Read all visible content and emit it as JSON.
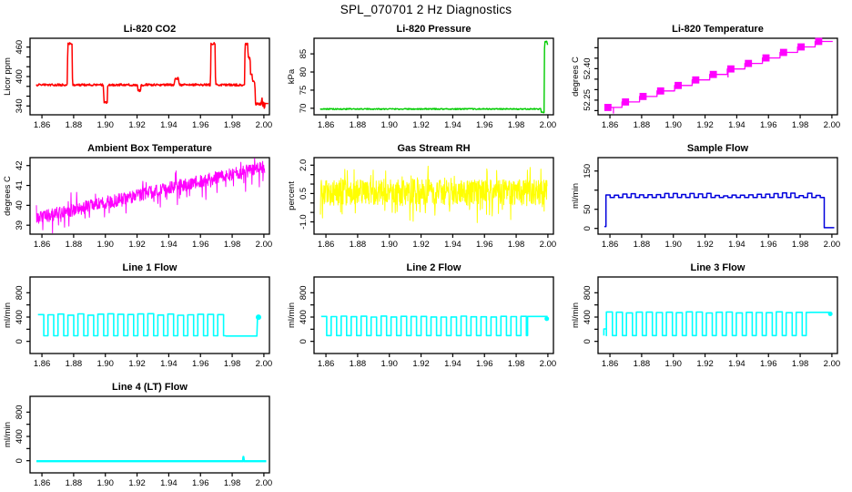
{
  "main_title": "SPL_070701  2 Hz Diagnostics",
  "background": "#FFFFFF",
  "axis_color": "#000000",
  "chart_data": [
    {
      "title": "Li-820 CO2",
      "type": "line",
      "color": "#FF0000",
      "line_width": 1.5,
      "ylabel": "Licor ppm",
      "xlim": [
        1.8525,
        2.0035
      ],
      "ylim": [
        322,
        478
      ],
      "xticks": [
        1.86,
        1.88,
        1.9,
        1.92,
        1.94,
        1.96,
        1.98,
        2.0
      ],
      "xtick_labels": [
        "1.86",
        "1.88",
        "1.90",
        "1.92",
        "1.94",
        "1.96",
        "1.98",
        "2.00"
      ],
      "yticks": [
        340,
        360,
        380,
        400,
        420,
        440,
        460
      ],
      "ytick_labels": [
        "340",
        "",
        "",
        "400",
        "",
        "",
        "460"
      ],
      "series": {
        "mode": "noisyline",
        "n": 520,
        "noise": 2.2,
        "seed": 7,
        "points": [
          [
            1.8565,
            383
          ],
          [
            1.876,
            383
          ],
          [
            1.8763,
            467
          ],
          [
            1.879,
            467
          ],
          [
            1.8793,
            383
          ],
          [
            1.8988,
            383
          ],
          [
            1.8991,
            347
          ],
          [
            1.9012,
            347
          ],
          [
            1.9015,
            383
          ],
          [
            1.9203,
            383
          ],
          [
            1.9206,
            371
          ],
          [
            1.9222,
            371
          ],
          [
            1.9225,
            383
          ],
          [
            1.9435,
            383
          ],
          [
            1.9438,
            396
          ],
          [
            1.9462,
            396
          ],
          [
            1.9465,
            383
          ],
          [
            1.9663,
            383
          ],
          [
            1.9666,
            467
          ],
          [
            1.9692,
            467
          ],
          [
            1.9695,
            383
          ],
          [
            1.9878,
            383
          ],
          [
            1.9881,
            467
          ],
          [
            1.9898,
            467
          ],
          [
            1.9901,
            438
          ],
          [
            1.9913,
            438
          ],
          [
            1.9916,
            404
          ],
          [
            1.9925,
            404
          ],
          [
            1.9929,
            389
          ],
          [
            1.9943,
            389
          ],
          [
            1.9947,
            344
          ],
          [
            1.9983,
            344
          ],
          [
            1.9988,
            358
          ],
          [
            1.9993,
            336
          ],
          [
            1.9998,
            352
          ],
          [
            2.0003,
            333
          ],
          [
            2.0008,
            346
          ]
        ]
      },
      "extra_lines": [
        [
          [
            1.9983,
            345
          ],
          [
            2.0028,
            345
          ]
        ]
      ]
    },
    {
      "title": "Li-820 Pressure",
      "type": "line",
      "color": "#00CC00",
      "line_width": 1.4,
      "ylabel": "kPa",
      "xlim": [
        1.8525,
        2.0035
      ],
      "ylim": [
        68.2,
        89.3
      ],
      "xticks": [
        1.86,
        1.88,
        1.9,
        1.92,
        1.94,
        1.96,
        1.98,
        2.0
      ],
      "xtick_labels": [
        "1.86",
        "1.88",
        "1.90",
        "1.92",
        "1.94",
        "1.96",
        "1.98",
        "2.00"
      ],
      "yticks": [
        70,
        75,
        80,
        85
      ],
      "ytick_labels": [
        "70",
        "75",
        "80",
        "85"
      ],
      "series": {
        "mode": "noisyline",
        "n": 520,
        "noise": 0.16,
        "seed": 11,
        "points": [
          [
            1.8565,
            69.8
          ],
          [
            1.9955,
            69.8
          ],
          [
            1.9958,
            68.9
          ],
          [
            1.9976,
            68.9
          ],
          [
            1.9979,
            88.4
          ],
          [
            1.9993,
            88.4
          ],
          [
            1.9998,
            87.5
          ]
        ]
      }
    },
    {
      "title": "Li-820 Temperature",
      "type": "line",
      "color": "#FF00FF",
      "line_width": 1.3,
      "ylabel": "degrees C",
      "xlim": [
        1.8525,
        2.0035
      ],
      "ylim": [
        52.18,
        52.545
      ],
      "xticks": [
        1.86,
        1.88,
        1.9,
        1.92,
        1.94,
        1.96,
        1.98,
        2.0
      ],
      "xtick_labels": [
        "1.86",
        "1.88",
        "1.90",
        "1.92",
        "1.94",
        "1.96",
        "1.98",
        "2.00"
      ],
      "yticks": [
        52.2,
        52.25,
        52.3,
        52.35,
        52.4,
        52.45,
        52.5
      ],
      "ytick_labels": [
        "",
        "52.25",
        "",
        "",
        "52.40",
        "",
        ""
      ],
      "series": {
        "mode": "stair",
        "x0": 1.8565,
        "x1": 2.0005,
        "y0": 52.215,
        "y1": 52.53,
        "steps": 13,
        "block_w": 0.0045,
        "block_h": 0.034
      },
      "extra_lines": [
        [
          [
            1.8622,
            52.215
          ],
          [
            1.8622,
            52.186
          ]
        ],
        [
          [
            1.9345,
            52.39
          ],
          [
            1.9345,
            52.358
          ]
        ]
      ]
    },
    {
      "title": "Ambient Box Temperature",
      "type": "line",
      "color": "#FF00FF",
      "line_width": 1.0,
      "ylabel": "degrees C",
      "xlim": [
        1.8525,
        2.0035
      ],
      "ylim": [
        38.55,
        42.4
      ],
      "xticks": [
        1.86,
        1.88,
        1.9,
        1.92,
        1.94,
        1.96,
        1.98,
        2.0
      ],
      "xtick_labels": [
        "1.86",
        "1.88",
        "1.90",
        "1.92",
        "1.94",
        "1.96",
        "1.98",
        "2.00"
      ],
      "yticks": [
        39,
        40,
        41,
        42
      ],
      "ytick_labels": [
        "39",
        "40",
        "41",
        "42"
      ],
      "series": {
        "mode": "noiseband",
        "x0": 1.8565,
        "x1": 2.0005,
        "y0": 39.35,
        "y1": 41.95,
        "amp": 0.32,
        "n": 680,
        "spike": 0.75,
        "spike_prob": 0.08,
        "down_bias": 0.75,
        "seed": 3
      }
    },
    {
      "title": "Gas Stream RH",
      "type": "line",
      "color": "#FFFF00",
      "line_width": 1.0,
      "ylabel": "percent",
      "xlim": [
        1.8525,
        2.0035
      ],
      "ylim": [
        -1.65,
        2.4
      ],
      "xticks": [
        1.86,
        1.88,
        1.9,
        1.92,
        1.94,
        1.96,
        1.98,
        2.0
      ],
      "xtick_labels": [
        "1.86",
        "1.88",
        "1.90",
        "1.92",
        "1.94",
        "1.96",
        "1.98",
        "2.00"
      ],
      "yticks": [
        -1.0,
        -0.5,
        0.0,
        0.5,
        1.0,
        1.5,
        2.0
      ],
      "ytick_labels": [
        "-1.0",
        "",
        "",
        "0.5",
        "",
        "",
        "2.0"
      ],
      "series": {
        "mode": "noiseband",
        "x0": 1.8565,
        "x1": 1.9995,
        "y0": 0.55,
        "y1": 0.55,
        "amp": 0.68,
        "n": 760,
        "spike": 1.0,
        "spike_prob": 0.12,
        "down_bias": 0.5,
        "seed": 5
      }
    },
    {
      "title": "Sample Flow",
      "type": "line",
      "color": "#0000DD",
      "line_width": 1.5,
      "ylabel": "ml/min",
      "xlim": [
        1.8525,
        2.0035
      ],
      "ylim": [
        -15,
        185
      ],
      "xticks": [
        1.86,
        1.88,
        1.9,
        1.92,
        1.94,
        1.96,
        1.98,
        2.0
      ],
      "xtick_labels": [
        "1.86",
        "1.88",
        "1.90",
        "1.92",
        "1.94",
        "1.96",
        "1.98",
        "2.00"
      ],
      "yticks": [
        0,
        50,
        100,
        150
      ],
      "ytick_labels": [
        "0",
        "50",
        "",
        "150"
      ],
      "series": {
        "mode": "square",
        "x0": 1.8575,
        "x1": 1.9952,
        "period": 0.0053,
        "duty": 0.5,
        "high": 89,
        "low": 81,
        "jitter": 4,
        "seed": 9,
        "pre": [
          [
            1.8565,
            5
          ],
          [
            1.8575,
            5
          ]
        ],
        "post": [
          [
            1.9952,
            2
          ],
          [
            2.0015,
            2
          ]
        ]
      }
    },
    {
      "title": "Line 1 Flow",
      "type": "line",
      "color": "#00FFFF",
      "line_width": 1.6,
      "ylabel": "ml/min",
      "xlim": [
        1.8525,
        2.0035
      ],
      "ylim": [
        -200,
        1060
      ],
      "xticks": [
        1.86,
        1.88,
        1.9,
        1.92,
        1.94,
        1.96,
        1.98,
        2.0
      ],
      "xtick_labels": [
        "1.86",
        "1.88",
        "1.90",
        "1.92",
        "1.94",
        "1.96",
        "1.98",
        "2.00"
      ],
      "yticks": [
        0,
        200,
        400,
        600,
        800
      ],
      "ytick_labels": [
        "0",
        "",
        "400",
        "",
        "800"
      ],
      "series": {
        "mode": "square",
        "x0": 1.8575,
        "x1": 1.976,
        "period": 0.0063,
        "duty": 0.58,
        "high": 442,
        "low": 93,
        "jitter": 14,
        "seed": 13,
        "pre": [],
        "post": [
          [
            1.976,
            88
          ],
          [
            1.9956,
            88
          ],
          [
            1.996,
            396
          ],
          [
            1.9972,
            396
          ]
        ]
      },
      "dots": [
        [
          1.9966,
          398,
          3
        ]
      ]
    },
    {
      "title": "Line 2 Flow",
      "type": "line",
      "color": "#00FFFF",
      "line_width": 1.6,
      "ylabel": "ml/min",
      "xlim": [
        1.8525,
        2.0035
      ],
      "ylim": [
        -200,
        1060
      ],
      "xticks": [
        1.86,
        1.88,
        1.9,
        1.92,
        1.94,
        1.96,
        1.98,
        2.0
      ],
      "xtick_labels": [
        "1.86",
        "1.88",
        "1.90",
        "1.92",
        "1.94",
        "1.96",
        "1.98",
        "2.00"
      ],
      "yticks": [
        0,
        200,
        400,
        600,
        800
      ],
      "ytick_labels": [
        "0",
        "",
        "400",
        "",
        "800"
      ],
      "series": {
        "mode": "square",
        "x0": 1.857,
        "x1": 1.9872,
        "period": 0.0063,
        "duty": 0.55,
        "high": 408,
        "low": 95,
        "jitter": 9,
        "seed": 17,
        "pre": [],
        "post": [
          [
            1.9872,
            410
          ],
          [
            1.9998,
            410
          ]
        ]
      },
      "dots": [
        [
          1.9993,
          372,
          2.5
        ]
      ]
    },
    {
      "title": "Line 3 Flow",
      "type": "line",
      "color": "#00FFFF",
      "line_width": 1.6,
      "ylabel": "ml/min",
      "xlim": [
        1.8525,
        2.0035
      ],
      "ylim": [
        -200,
        1060
      ],
      "xticks": [
        1.86,
        1.88,
        1.9,
        1.92,
        1.94,
        1.96,
        1.98,
        2.0
      ],
      "xtick_labels": [
        "1.86",
        "1.88",
        "1.90",
        "1.92",
        "1.94",
        "1.96",
        "1.98",
        "2.00"
      ],
      "yticks": [
        0,
        200,
        400,
        600,
        800
      ],
      "ytick_labels": [
        "0",
        "",
        "400",
        "",
        "800"
      ],
      "series": {
        "mode": "square",
        "x0": 1.8578,
        "x1": 1.986,
        "period": 0.0063,
        "duty": 0.6,
        "high": 478,
        "low": 95,
        "jitter": 10,
        "seed": 21,
        "pre": [
          [
            1.8562,
            95
          ],
          [
            1.8562,
            205
          ],
          [
            1.8578,
            205
          ],
          [
            1.8578,
            95
          ]
        ],
        "post": [
          [
            1.986,
            478
          ],
          [
            1.9996,
            478
          ]
        ]
      },
      "dots": [
        [
          1.999,
          452,
          2.5
        ]
      ]
    },
    {
      "title": "Line 4 (LT) Flow",
      "type": "line",
      "color": "#00FFFF",
      "line_width": 2.4,
      "ylabel": "ml/min",
      "xlim": [
        1.8525,
        2.0035
      ],
      "ylim": [
        -200,
        1060
      ],
      "xticks": [
        1.86,
        1.88,
        1.9,
        1.92,
        1.94,
        1.96,
        1.98,
        2.0
      ],
      "xtick_labels": [
        "1.86",
        "1.88",
        "1.90",
        "1.92",
        "1.94",
        "1.96",
        "1.98",
        "2.00"
      ],
      "yticks": [
        0,
        200,
        400,
        600,
        800
      ],
      "ytick_labels": [
        "0",
        "",
        "400",
        "",
        "800"
      ],
      "series": {
        "mode": "polyline",
        "points": [
          [
            1.8565,
            -8
          ],
          [
            1.9868,
            -8
          ],
          [
            1.9871,
            62
          ],
          [
            1.9874,
            -8
          ],
          [
            2.0015,
            -8
          ]
        ]
      }
    }
  ]
}
